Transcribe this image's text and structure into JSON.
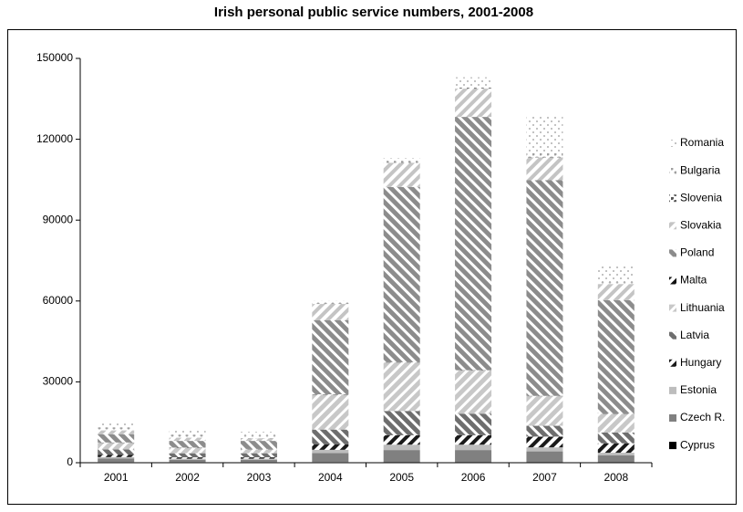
{
  "chart_data": {
    "type": "stacked-bar",
    "title": "Irish personal public service numbers, 2001-2008",
    "categories": [
      "2001",
      "2002",
      "2003",
      "2004",
      "2005",
      "2006",
      "2007",
      "2008"
    ],
    "series": [
      {
        "name": "Cyprus",
        "color": "#000000",
        "values": [
          100,
          100,
          100,
          100,
          200,
          200,
          200,
          200
        ]
      },
      {
        "name": "Czech R.",
        "color": "#808080",
        "values": [
          1500,
          1000,
          1000,
          3500,
          4500,
          4500,
          4000,
          2500
        ]
      },
      {
        "name": "Estonia",
        "color": "#bdbdbd",
        "values": [
          500,
          400,
          400,
          1200,
          2000,
          2000,
          1500,
          1000
        ]
      },
      {
        "name": "Hungary",
        "color": "#1a1a1a",
        "values": [
          800,
          500,
          500,
          2000,
          3500,
          3500,
          4000,
          3500
        ]
      },
      {
        "name": "Latvia",
        "color": "#6e6e6e",
        "values": [
          2000,
          1500,
          1500,
          5500,
          9000,
          8000,
          4000,
          4000
        ]
      },
      {
        "name": "Lithuania",
        "color": "#c8c8c8",
        "values": [
          2500,
          2000,
          1500,
          13000,
          18000,
          16000,
          11000,
          7000
        ]
      },
      {
        "name": "Malta",
        "color": "#111111",
        "values": [
          100,
          100,
          100,
          100,
          100,
          100,
          100,
          100
        ]
      },
      {
        "name": "Poland",
        "color": "#8c8c8c",
        "values": [
          3000,
          2500,
          3000,
          27500,
          65000,
          94000,
          80000,
          42000
        ]
      },
      {
        "name": "Slovakia",
        "color": "#c4c4c4",
        "values": [
          1500,
          1200,
          1000,
          6000,
          9000,
          10500,
          8500,
          6000
        ]
      },
      {
        "name": "Slovenia",
        "color": "#555555",
        "values": [
          100,
          100,
          100,
          100,
          200,
          200,
          200,
          100
        ]
      },
      {
        "name": "Bulgaria",
        "color": "#a0a0a0",
        "values": [
          1000,
          1000,
          800,
          500,
          500,
          500,
          1500,
          500
        ]
      },
      {
        "name": "Romania",
        "color": "#b0b0b0",
        "values": [
          1500,
          2000,
          1500,
          500,
          1000,
          3500,
          14000,
          6500
        ]
      }
    ],
    "ylim": [
      0,
      150000
    ],
    "yticks": [
      0,
      30000,
      60000,
      90000,
      120000,
      150000
    ]
  }
}
